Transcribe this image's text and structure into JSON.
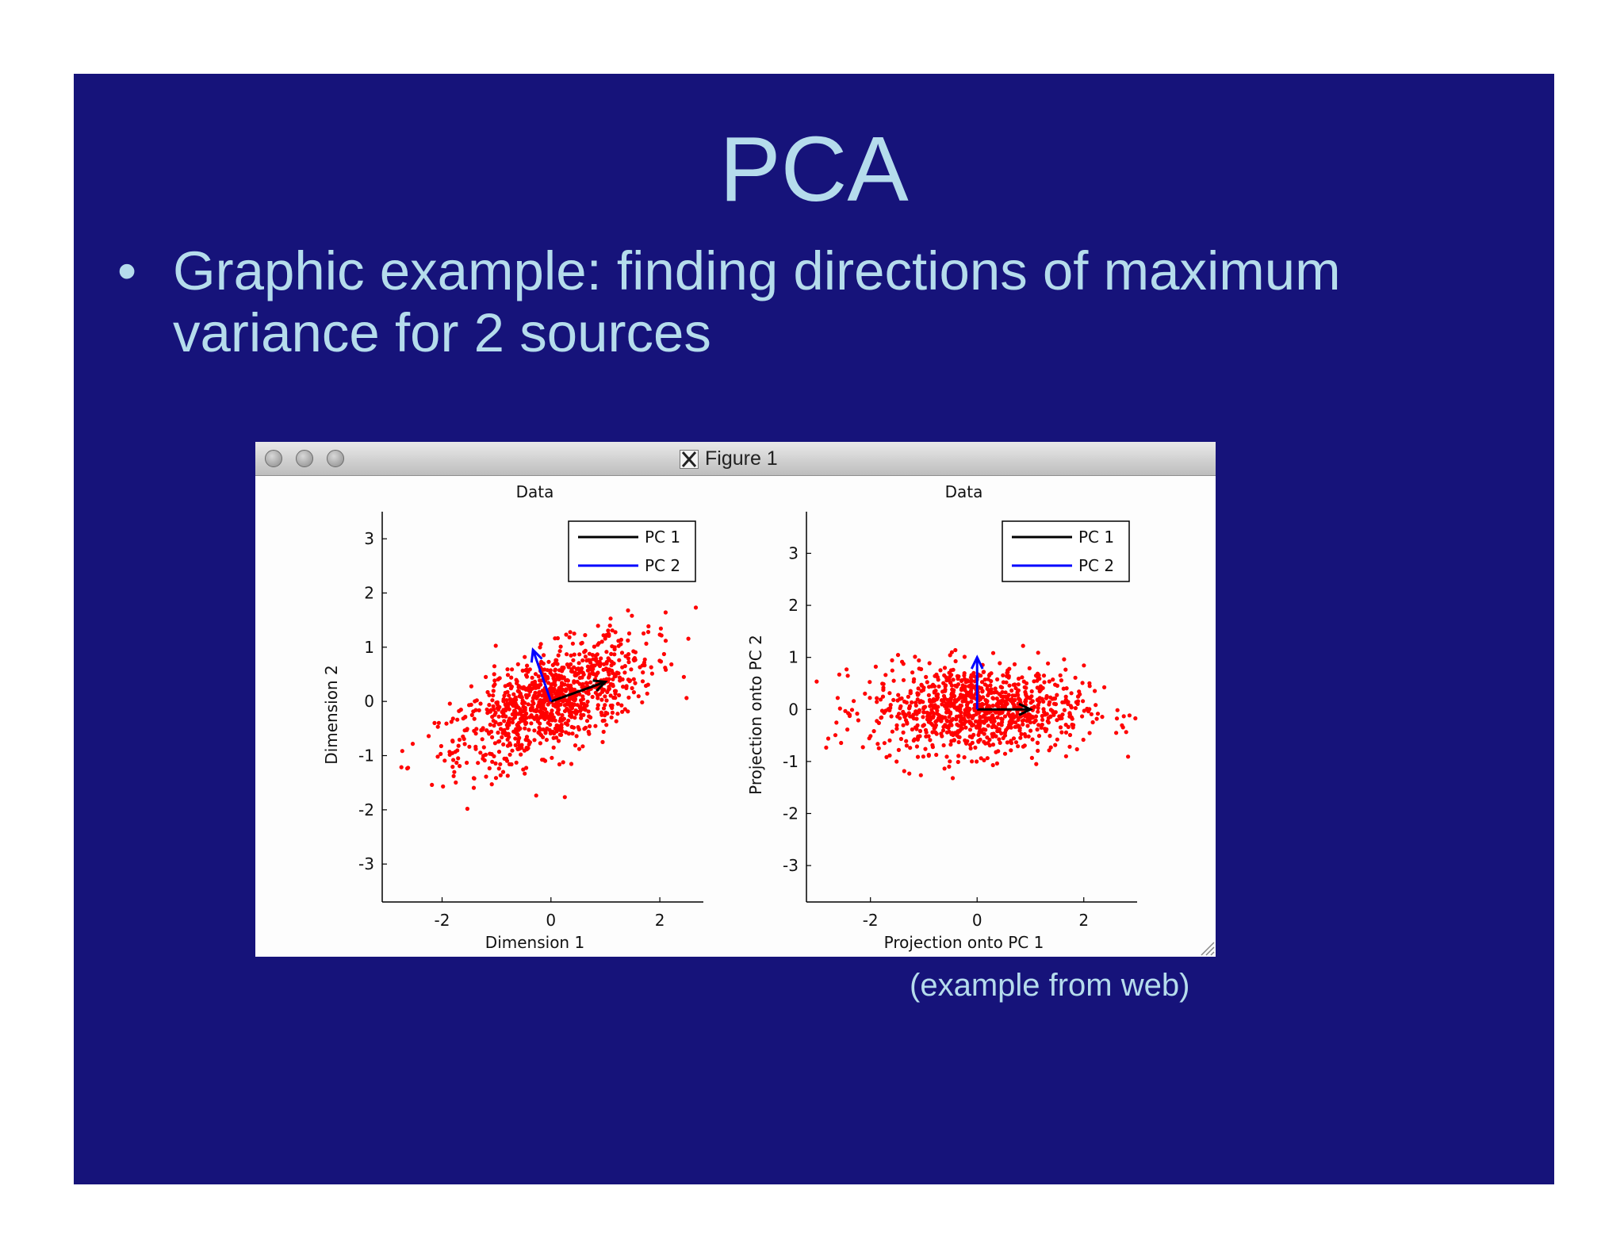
{
  "slide": {
    "title": "PCA",
    "bullet_marker": "•",
    "bullet_text": "Graphic example: finding directions of maximum variance for 2 sources",
    "caption": "(example from web)",
    "background_color": "#16137a",
    "text_color": "#b5dcec"
  },
  "window": {
    "title": "Figure 1",
    "app_icon": "x11-icon",
    "traffic_lights": [
      "close-button",
      "minimize-button",
      "zoom-button"
    ]
  },
  "chart_data": [
    {
      "type": "scatter",
      "title": "Data",
      "xlabel": "Dimension 1",
      "ylabel": "Dimension 2",
      "xlim": [
        -3.1,
        2.8
      ],
      "ylim": [
        -3.7,
        3.5
      ],
      "xticks": [
        -2,
        0,
        2
      ],
      "yticks": [
        -3,
        -2,
        -1,
        0,
        1,
        2,
        3
      ],
      "point_color": "#ff0000",
      "cloud": {
        "n": 1000,
        "center": [
          0,
          0
        ],
        "principal_angle_deg": 27,
        "sd_major": 1.0,
        "sd_minor": 0.42
      },
      "vectors": [
        {
          "name": "PC 1",
          "color": "#000000",
          "from": [
            0,
            0
          ],
          "to": [
            1.0,
            0.36
          ]
        },
        {
          "name": "PC 2",
          "color": "#0000ff",
          "from": [
            0,
            0
          ],
          "to": [
            -0.33,
            0.95
          ]
        }
      ],
      "legend": {
        "position": "top-right",
        "entries": [
          "PC 1",
          "PC 2"
        ]
      }
    },
    {
      "type": "scatter",
      "title": "Data",
      "xlabel": "Projection onto PC 1",
      "ylabel": "Projection onto PC 2",
      "xlim": [
        -3.2,
        3.0
      ],
      "ylim": [
        -3.7,
        3.8
      ],
      "xticks": [
        -2,
        0,
        2
      ],
      "yticks": [
        -3,
        -2,
        -1,
        0,
        1,
        2,
        3
      ],
      "point_color": "#ff0000",
      "cloud": {
        "n": 1000,
        "center": [
          0,
          0
        ],
        "principal_angle_deg": 0,
        "sd_major": 1.0,
        "sd_minor": 0.42
      },
      "vectors": [
        {
          "name": "PC 1",
          "color": "#000000",
          "from": [
            0,
            0
          ],
          "to": [
            1.0,
            0
          ]
        },
        {
          "name": "PC 2",
          "color": "#0000ff",
          "from": [
            0,
            0
          ],
          "to": [
            0,
            1.0
          ]
        }
      ],
      "legend": {
        "position": "top-right",
        "entries": [
          "PC 1",
          "PC 2"
        ]
      }
    }
  ]
}
